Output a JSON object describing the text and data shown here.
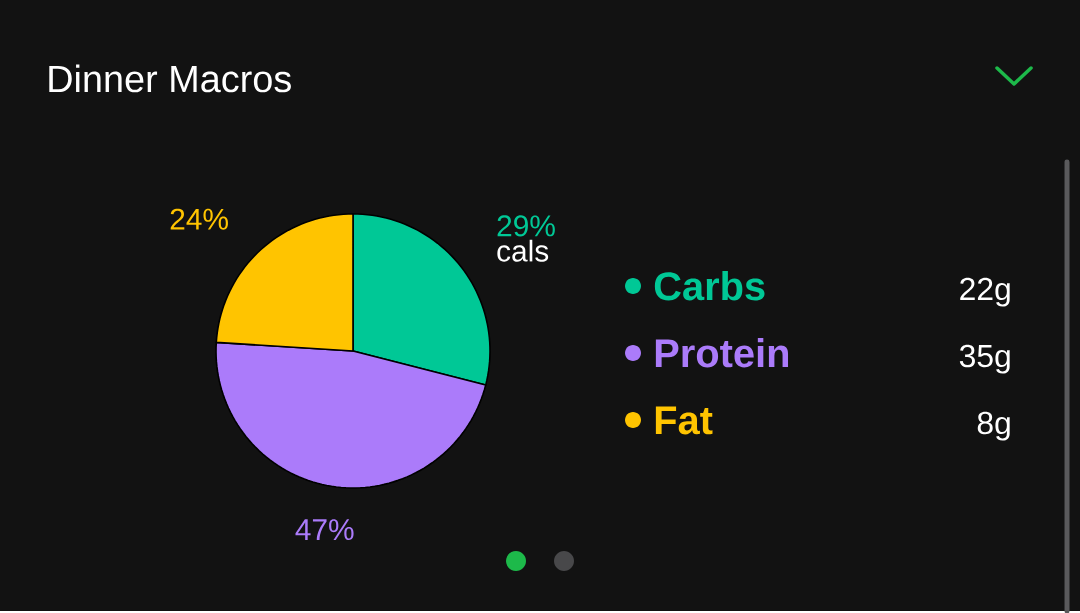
{
  "chart_data": {
    "type": "pie",
    "title": "Dinner Macros",
    "categories": [
      "Carbs",
      "Protein",
      "Fat"
    ],
    "values": [
      29,
      47,
      24
    ],
    "colors": [
      "#00c896",
      "#ab7bfa",
      "#ffc400"
    ],
    "value_labels": [
      "29%",
      "47%",
      "24%"
    ],
    "annotations": [
      "cals",
      "22g",
      "35g",
      "8g"
    ],
    "legend": "right"
  }
}
